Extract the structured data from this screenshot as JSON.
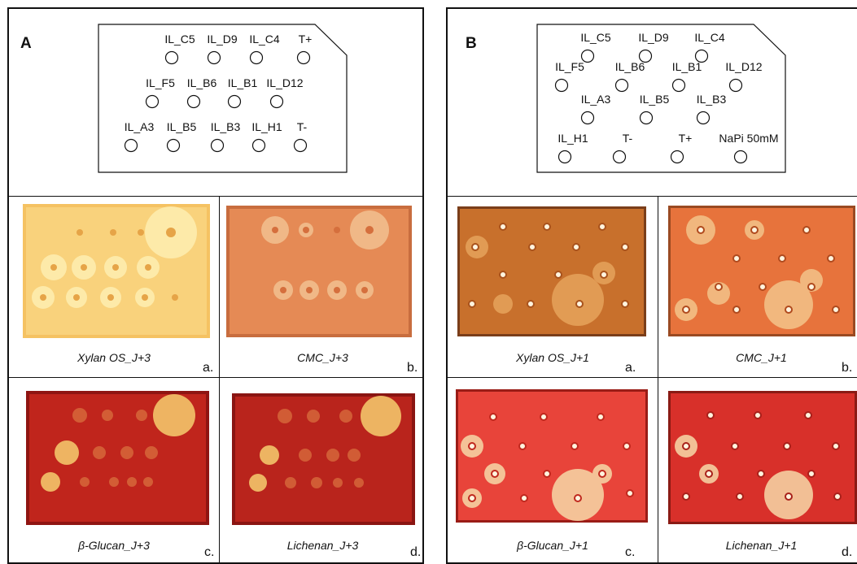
{
  "panels": [
    {
      "letter": "A",
      "schematic_rows": [
        [
          "IL_C5",
          "IL_D9",
          "IL_C4",
          "T+"
        ],
        [
          "IL_F5",
          "IL_B6",
          "IL_B1",
          "IL_D12"
        ],
        [
          "IL_A3",
          "IL_B5",
          "IL_B3",
          "IL_H1",
          "T-"
        ]
      ],
      "plates": [
        {
          "caption": "Xylan OS_J+3",
          "sub": "a."
        },
        {
          "caption": "CMC_J+3",
          "sub": "b."
        },
        {
          "caption": "β-Glucan_J+3",
          "sub": "c."
        },
        {
          "caption": "Lichenan_J+3",
          "sub": "d."
        }
      ]
    },
    {
      "letter": "B",
      "schematic_rows": [
        [
          "IL_C5",
          "IL_D9",
          "IL_C4"
        ],
        [
          "IL_F5",
          "IL_B6",
          "IL_B1",
          "IL_D12"
        ],
        [
          "IL_A3",
          "IL_B5",
          "IL_B3"
        ],
        [
          "IL_H1",
          "T-",
          "T+",
          "NaPi 50mM"
        ]
      ],
      "plates": [
        {
          "caption": "Xylan OS_J+1",
          "sub": "a."
        },
        {
          "caption": "CMC_J+1",
          "sub": "b."
        },
        {
          "caption": "β-Glucan_J+1",
          "sub": "c."
        },
        {
          "caption": "Lichenan_J+1",
          "sub": "d."
        }
      ]
    }
  ],
  "colors": {
    "xylan_A": "#f7c765",
    "cmc_A": "#e58a55",
    "glucan_A": "#c0251c",
    "lichenan_A": "#b9241c",
    "xylan_B": "#c8702c",
    "cmc_B": "#e7733c",
    "glucan_B": "#e8443a",
    "lichenan_B": "#d8302a"
  }
}
